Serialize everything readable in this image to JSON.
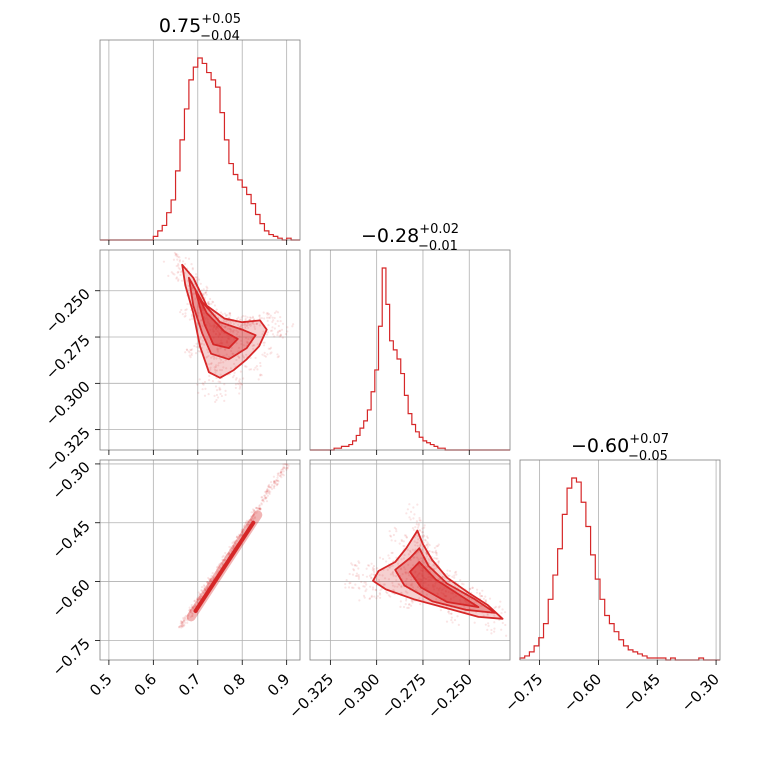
{
  "chart_data": {
    "type": "corner",
    "accent_color": "#d62728",
    "grid": true,
    "parameters": [
      {
        "id": "p0",
        "title_value": "0.75",
        "title_plus": "+0.05",
        "title_minus": "−0.04",
        "median": 0.75,
        "err_plus": 0.05,
        "err_minus": 0.04,
        "range": [
          0.48,
          0.93
        ],
        "ticks": [
          0.5,
          0.6,
          0.7,
          0.8,
          0.9
        ],
        "tick_labels": [
          "0.5",
          "0.6",
          "0.7",
          "0.8",
          "0.9"
        ]
      },
      {
        "id": "p1",
        "title_value": "−0.28",
        "title_plus": "+0.02",
        "title_minus": "−0.01",
        "median": -0.28,
        "err_plus": 0.02,
        "err_minus": 0.01,
        "range": [
          -0.336,
          -0.228
        ],
        "ticks": [
          -0.325,
          -0.3,
          -0.275,
          -0.25
        ],
        "tick_labels": [
          "−0.325",
          "−0.300",
          "−0.275",
          "−0.250"
        ]
      },
      {
        "id": "p2",
        "title_value": "−0.60",
        "title_plus": "+0.07",
        "title_minus": "−0.05",
        "median": -0.6,
        "err_plus": 0.07,
        "err_minus": 0.05,
        "range": [
          -0.8,
          -0.29
        ],
        "ticks": [
          -0.75,
          -0.6,
          -0.45,
          -0.3
        ],
        "tick_labels": [
          "−0.75",
          "−0.60",
          "−0.45",
          "−0.30"
        ]
      }
    ],
    "marginals": [
      {
        "param": "p0",
        "bin_width": 0.01,
        "start": 0.6,
        "counts": [
          2,
          5,
          8,
          15,
          22,
          38,
          55,
          72,
          88,
          95,
          100,
          97,
          92,
          88,
          84,
          70,
          55,
          42,
          36,
          33,
          29,
          25,
          20,
          14,
          9,
          5,
          3,
          2,
          1,
          0,
          1,
          0
        ]
      },
      {
        "param": "p1",
        "bin_width": 0.002,
        "start": -0.323,
        "counts": [
          1,
          1,
          2,
          2,
          3,
          5,
          8,
          12,
          16,
          22,
          32,
          44,
          68,
          100,
          80,
          60,
          55,
          50,
          42,
          30,
          20,
          14,
          10,
          7,
          5,
          4,
          3,
          2,
          1,
          1
        ]
      },
      {
        "param": "p2",
        "bin_width": 0.012,
        "start": -0.8,
        "counts": [
          1,
          2,
          4,
          7,
          11,
          18,
          30,
          42,
          55,
          72,
          85,
          90,
          88,
          78,
          66,
          52,
          40,
          30,
          22,
          18,
          14,
          10,
          7,
          5,
          4,
          3,
          2,
          1,
          1,
          1,
          1,
          0,
          1,
          0,
          0,
          0,
          0,
          0,
          1,
          0,
          0,
          0
        ]
      }
    ],
    "pairs": [
      {
        "x": "p0",
        "y": "p1",
        "label": "p0-vs-p1",
        "contours": [
          [
            [
              0.665,
              -0.236
            ],
            [
              0.69,
              -0.243
            ],
            [
              0.72,
              -0.258
            ],
            [
              0.76,
              -0.265
            ],
            [
              0.8,
              -0.267
            ],
            [
              0.84,
              -0.266
            ],
            [
              0.855,
              -0.271
            ],
            [
              0.838,
              -0.28
            ],
            [
              0.81,
              -0.287
            ],
            [
              0.78,
              -0.293
            ],
            [
              0.75,
              -0.297
            ],
            [
              0.725,
              -0.294
            ],
            [
              0.705,
              -0.28
            ],
            [
              0.69,
              -0.262
            ],
            [
              0.672,
              -0.247
            ]
          ],
          [
            [
              0.68,
              -0.243
            ],
            [
              0.71,
              -0.256
            ],
            [
              0.75,
              -0.267
            ],
            [
              0.8,
              -0.271
            ],
            [
              0.83,
              -0.274
            ],
            [
              0.81,
              -0.281
            ],
            [
              0.77,
              -0.287
            ],
            [
              0.73,
              -0.284
            ],
            [
              0.71,
              -0.273
            ],
            [
              0.69,
              -0.258
            ]
          ],
          [
            [
              0.695,
              -0.25
            ],
            [
              0.72,
              -0.262
            ],
            [
              0.76,
              -0.272
            ],
            [
              0.79,
              -0.276
            ],
            [
              0.77,
              -0.281
            ],
            [
              0.735,
              -0.279
            ],
            [
              0.715,
              -0.268
            ]
          ]
        ]
      },
      {
        "x": "p0",
        "y": "p2",
        "label": "p0-vs-p2",
        "line": [
          [
            0.66,
            -0.72
          ],
          [
            0.9,
            -0.3
          ]
        ]
      },
      {
        "x": "p1",
        "y": "p2",
        "label": "p1-vs-p2",
        "contours": [
          [
            [
              -0.299,
              -0.573
            ],
            [
              -0.29,
              -0.55
            ],
            [
              -0.284,
              -0.515
            ],
            [
              -0.278,
              -0.47
            ],
            [
              -0.275,
              -0.505
            ],
            [
              -0.27,
              -0.545
            ],
            [
              -0.262,
              -0.59
            ],
            [
              -0.25,
              -0.63
            ],
            [
              -0.24,
              -0.66
            ],
            [
              -0.232,
              -0.695
            ],
            [
              -0.245,
              -0.69
            ],
            [
              -0.262,
              -0.668
            ],
            [
              -0.28,
              -0.645
            ],
            [
              -0.295,
              -0.62
            ],
            [
              -0.302,
              -0.598
            ]
          ],
          [
            [
              -0.29,
              -0.57
            ],
            [
              -0.282,
              -0.54
            ],
            [
              -0.277,
              -0.515
            ],
            [
              -0.272,
              -0.56
            ],
            [
              -0.262,
              -0.605
            ],
            [
              -0.247,
              -0.645
            ],
            [
              -0.236,
              -0.68
            ],
            [
              -0.252,
              -0.672
            ],
            [
              -0.27,
              -0.65
            ],
            [
              -0.285,
              -0.61
            ]
          ],
          [
            [
              -0.282,
              -0.575
            ],
            [
              -0.277,
              -0.55
            ],
            [
              -0.268,
              -0.595
            ],
            [
              -0.255,
              -0.635
            ],
            [
              -0.245,
              -0.665
            ],
            [
              -0.262,
              -0.652
            ],
            [
              -0.276,
              -0.615
            ]
          ]
        ]
      }
    ]
  }
}
